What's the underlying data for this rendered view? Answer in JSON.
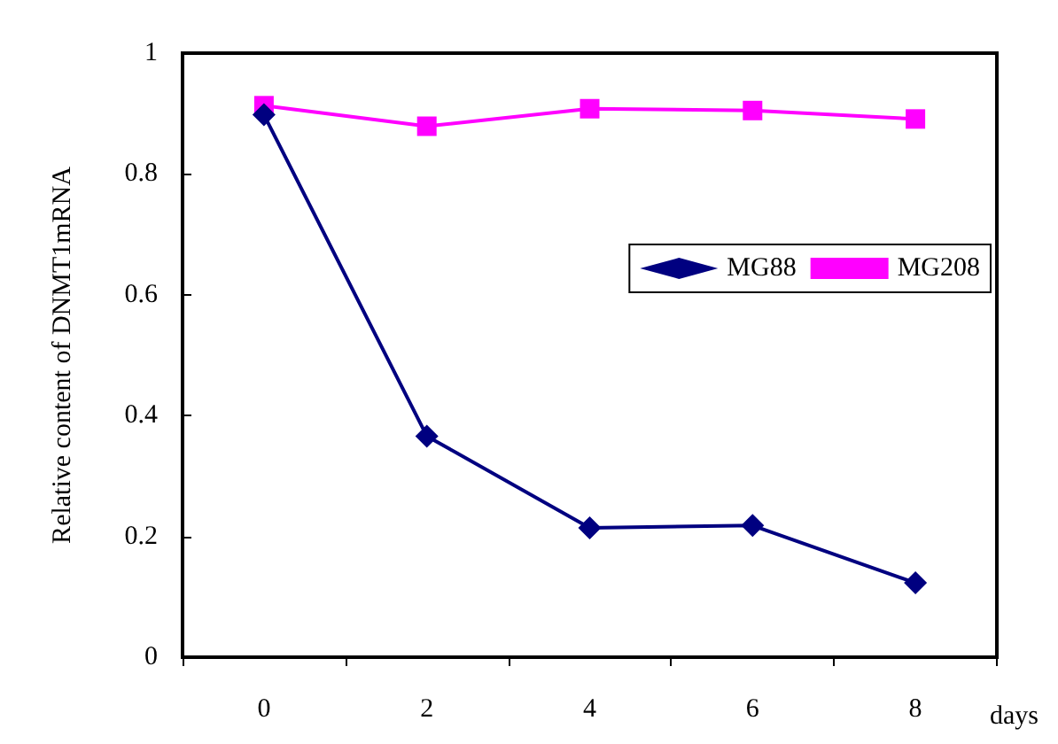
{
  "chart_data": {
    "type": "line",
    "xlabel": "days",
    "ylabel": "Relative content of DNMT1mRNA",
    "categories": [
      "0",
      "2",
      "4",
      "6",
      "8"
    ],
    "series": [
      {
        "name": "MG88",
        "color": "#000080",
        "marker": "diamond",
        "values": [
          0.898,
          0.366,
          0.214,
          0.218,
          0.123
        ]
      },
      {
        "name": "MG208",
        "color": "#ff00ff",
        "marker": "square",
        "values": [
          0.913,
          0.879,
          0.908,
          0.905,
          0.891
        ]
      }
    ],
    "ylim": [
      0,
      1
    ],
    "yticks": [
      0,
      0.2,
      0.4,
      0.6,
      0.8,
      1
    ],
    "grid": false,
    "legend": "right",
    "line_style": "solid"
  }
}
